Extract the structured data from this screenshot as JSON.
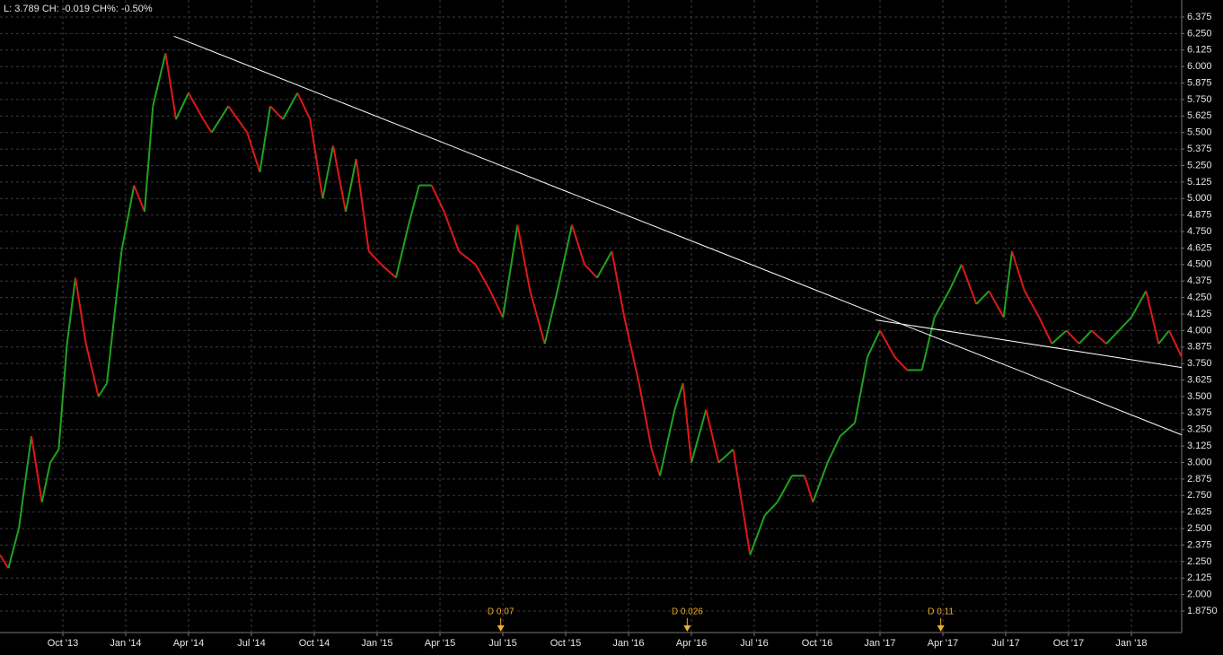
{
  "chart_data": {
    "type": "price",
    "info": "L: 3.789 CH: -0.019 CH%: -0.50%",
    "up_color": "#1fa31f",
    "down_color": "#e01818",
    "grid": true,
    "x": [
      0,
      0.4,
      0.9,
      1.5,
      2,
      2.4,
      2.8,
      3.2,
      3.6,
      4.1,
      4.7,
      5.1,
      5.8,
      6.4,
      6.9,
      7.3,
      7.9,
      8.4,
      9,
      9.7,
      10.1,
      10.9,
      11.8,
      12.4,
      12.9,
      13.5,
      14.2,
      14.8,
      15.4,
      15.9,
      16.5,
      17,
      17.6,
      18.2,
      18.9,
      19.5,
      20,
      20.6,
      21.2,
      21.9,
      22.7,
      23.4,
      24,
      24.7,
      25.3,
      26,
      26.6,
      27.3,
      27.9,
      28.5,
      29.2,
      29.8,
      30.5,
      31.1,
      31.5,
      32.2,
      32.6,
      33,
      33.7,
      34.3,
      35,
      35.4,
      35.8,
      36.5,
      37.1,
      37.8,
      38.4,
      38.8,
      39.5,
      40.1,
      40.8,
      41.4,
      42,
      42.7,
      43.3,
      44,
      44.6,
      45.3,
      45.9,
      46.6,
      47.2,
      47.9,
      48.3,
      48.9,
      49.6,
      50.2,
      50.9,
      51.5,
      52.1,
      52.8,
      53.4,
      54,
      54.7,
      55.3,
      55.8,
      56.4
    ],
    "values": [
      2.3,
      2.2,
      2.5,
      3.2,
      2.7,
      3.0,
      3.1,
      3.9,
      4.4,
      3.9,
      3.5,
      3.6,
      4.6,
      5.1,
      4.9,
      5.7,
      6.1,
      5.6,
      5.8,
      5.6,
      5.5,
      5.7,
      5.5,
      5.2,
      5.7,
      5.6,
      5.8,
      5.6,
      5.0,
      5.4,
      4.9,
      5.3,
      4.6,
      4.5,
      4.4,
      4.8,
      5.1,
      5.1,
      4.9,
      4.6,
      4.5,
      4.3,
      4.1,
      4.8,
      4.3,
      3.9,
      4.3,
      4.8,
      4.5,
      4.4,
      4.6,
      4.1,
      3.6,
      3.1,
      2.9,
      3.4,
      3.6,
      3.0,
      3.4,
      3.0,
      3.1,
      2.7,
      2.3,
      2.6,
      2.7,
      2.9,
      2.9,
      2.7,
      3.0,
      3.2,
      3.3,
      3.8,
      4.0,
      3.8,
      3.7,
      3.7,
      4.1,
      4.3,
      4.5,
      4.2,
      4.3,
      4.1,
      4.6,
      4.3,
      4.1,
      3.9,
      4.0,
      3.9,
      4.0,
      3.9,
      4.0,
      4.1,
      4.3,
      3.9,
      4.0,
      3.8
    ],
    "xlim": [
      0,
      56.4
    ],
    "xticks": [
      {
        "value": 3,
        "label": "Oct '13"
      },
      {
        "value": 6,
        "label": "Jan '14"
      },
      {
        "value": 9,
        "label": "Apr '14"
      },
      {
        "value": 12,
        "label": "Jul '14"
      },
      {
        "value": 15,
        "label": "Oct '14"
      },
      {
        "value": 18,
        "label": "Jan '15"
      },
      {
        "value": 21,
        "label": "Apr '15"
      },
      {
        "value": 24,
        "label": "Jul '15"
      },
      {
        "value": 27,
        "label": "Oct '15"
      },
      {
        "value": 30,
        "label": "Jan '16"
      },
      {
        "value": 33,
        "label": "Apr '16"
      },
      {
        "value": 36,
        "label": "Jul '16"
      },
      {
        "value": 39,
        "label": "Oct '16"
      },
      {
        "value": 42,
        "label": "Jan '17"
      },
      {
        "value": 45,
        "label": "Apr '17"
      },
      {
        "value": 48,
        "label": "Jul '17"
      },
      {
        "value": 51,
        "label": "Oct '17"
      },
      {
        "value": 54,
        "label": "Jan '18"
      }
    ],
    "ylim": [
      1.712,
      6.504
    ],
    "yticks": [
      6.375,
      {
        "value": 6.25,
        "label": "6.250"
      },
      6.125,
      {
        "value": 6,
        "label": "6.000"
      },
      5.875,
      {
        "value": 5.75,
        "label": "5.750"
      },
      5.625,
      {
        "value": 5.5,
        "label": "5.500"
      },
      5.375,
      {
        "value": 5.25,
        "label": "5.250"
      },
      5.125,
      {
        "value": 5,
        "label": "5.000"
      },
      4.875,
      {
        "value": 4.75,
        "label": "4.750"
      },
      4.625,
      {
        "value": 4.5,
        "label": "4.500"
      },
      4.375,
      {
        "value": 4.25,
        "label": "4.250"
      },
      4.125,
      {
        "value": 4,
        "label": "4.000"
      },
      3.875,
      {
        "value": 3.75,
        "label": "3.750"
      },
      3.625,
      {
        "value": 3.5,
        "label": "3.500"
      },
      3.375,
      {
        "value": 3.25,
        "label": "3.250"
      },
      3.125,
      {
        "value": 3,
        "label": "3.000"
      },
      2.875,
      {
        "value": 2.75,
        "label": "2.750"
      },
      2.625,
      {
        "value": 2.5,
        "label": "2.500"
      },
      2.375,
      {
        "value": 2.25,
        "label": "2.250"
      },
      2.125,
      {
        "value": 2,
        "label": "2.000"
      },
      {
        "value": 1.875,
        "label": "1.8750"
      }
    ],
    "trendlines": [
      {
        "x": [
          8.3,
          56.4
        ],
        "y": [
          6.23,
          3.21
        ],
        "color": "#ffffff"
      },
      {
        "x": [
          41.8,
          56.4
        ],
        "y": [
          4.08,
          3.72
        ],
        "color": "#ffffff"
      }
    ],
    "annotations": [
      {
        "text": "D 0.07",
        "x": 23.9,
        "color": "#f0b020"
      },
      {
        "text": "D 0.026",
        "x": 32.8,
        "color": "#f0b020"
      },
      {
        "text": "D 0.11",
        "x": 44.9,
        "color": "#f0b020"
      }
    ]
  }
}
